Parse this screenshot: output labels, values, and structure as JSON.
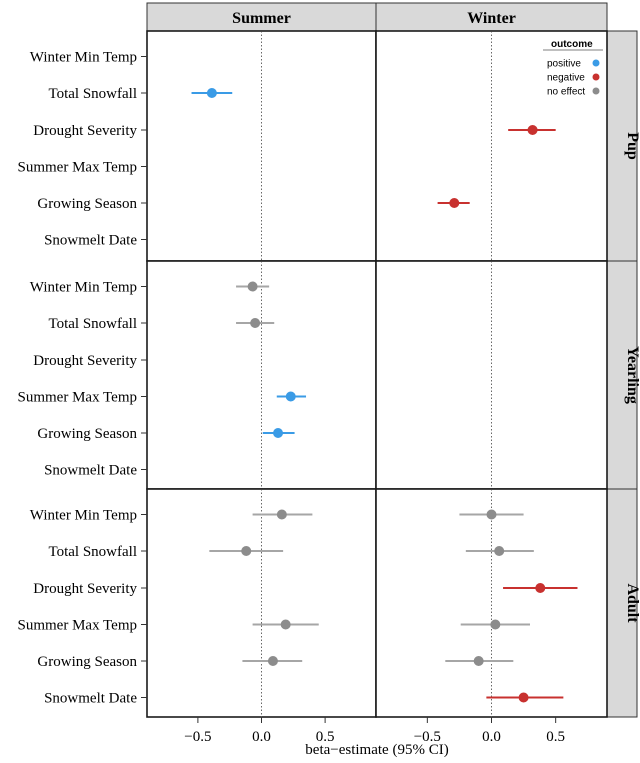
{
  "chart_data": {
    "type": "scatter",
    "xlabel": "beta−estimate (95% CI)",
    "ylabel": "",
    "xlim": [
      -0.9,
      0.9
    ],
    "xticks": [
      -0.5,
      0.0,
      0.5
    ],
    "xtick_labels": [
      "−0.5",
      "0.0",
      "0.5"
    ],
    "columns": [
      "Summer",
      "Winter"
    ],
    "rows": [
      "Pup",
      "Yearling",
      "Adult"
    ],
    "categories": [
      "Winter Min Temp",
      "Total Snowfall",
      "Drought Severity",
      "Summer Max Temp",
      "Growing Season",
      "Snowmelt Date"
    ],
    "grid": false,
    "legend": {
      "title": "outcome",
      "position": "top-right",
      "entries": [
        {
          "label": "positive",
          "color": "#3a9be6"
        },
        {
          "label": "negative",
          "color": "#c8312f"
        },
        {
          "label": "no effect",
          "color": "#8c8c8c"
        }
      ]
    },
    "points": [
      {
        "row": "Pup",
        "column": "Summer",
        "category": "Total Snowfall",
        "estimate": -0.39,
        "lower": -0.55,
        "upper": -0.23,
        "outcome": "positive"
      },
      {
        "row": "Pup",
        "column": "Winter",
        "category": "Drought Severity",
        "estimate": 0.32,
        "lower": 0.13,
        "upper": 0.5,
        "outcome": "negative"
      },
      {
        "row": "Pup",
        "column": "Winter",
        "category": "Growing Season",
        "estimate": -0.29,
        "lower": -0.42,
        "upper": -0.17,
        "outcome": "negative"
      },
      {
        "row": "Yearling",
        "column": "Summer",
        "category": "Winter Min Temp",
        "estimate": -0.07,
        "lower": -0.2,
        "upper": 0.06,
        "outcome": "no effect"
      },
      {
        "row": "Yearling",
        "column": "Summer",
        "category": "Total Snowfall",
        "estimate": -0.05,
        "lower": -0.2,
        "upper": 0.1,
        "outcome": "no effect"
      },
      {
        "row": "Yearling",
        "column": "Summer",
        "category": "Summer Max Temp",
        "estimate": 0.23,
        "lower": 0.12,
        "upper": 0.35,
        "outcome": "positive"
      },
      {
        "row": "Yearling",
        "column": "Summer",
        "category": "Growing Season",
        "estimate": 0.13,
        "lower": 0.01,
        "upper": 0.26,
        "outcome": "positive"
      },
      {
        "row": "Adult",
        "column": "Summer",
        "category": "Winter Min Temp",
        "estimate": 0.16,
        "lower": -0.07,
        "upper": 0.4,
        "outcome": "no effect"
      },
      {
        "row": "Adult",
        "column": "Summer",
        "category": "Total Snowfall",
        "estimate": -0.12,
        "lower": -0.41,
        "upper": 0.17,
        "outcome": "no effect"
      },
      {
        "row": "Adult",
        "column": "Summer",
        "category": "Summer Max Temp",
        "estimate": 0.19,
        "lower": -0.07,
        "upper": 0.45,
        "outcome": "no effect"
      },
      {
        "row": "Adult",
        "column": "Summer",
        "category": "Growing Season",
        "estimate": 0.09,
        "lower": -0.15,
        "upper": 0.32,
        "outcome": "no effect"
      },
      {
        "row": "Adult",
        "column": "Winter",
        "category": "Winter Min Temp",
        "estimate": 0.0,
        "lower": -0.25,
        "upper": 0.25,
        "outcome": "no effect"
      },
      {
        "row": "Adult",
        "column": "Winter",
        "category": "Total Snowfall",
        "estimate": 0.06,
        "lower": -0.2,
        "upper": 0.33,
        "outcome": "no effect"
      },
      {
        "row": "Adult",
        "column": "Winter",
        "category": "Drought Severity",
        "estimate": 0.38,
        "lower": 0.09,
        "upper": 0.67,
        "outcome": "negative"
      },
      {
        "row": "Adult",
        "column": "Winter",
        "category": "Summer Max Temp",
        "estimate": 0.03,
        "lower": -0.24,
        "upper": 0.3,
        "outcome": "no effect"
      },
      {
        "row": "Adult",
        "column": "Winter",
        "category": "Growing Season",
        "estimate": -0.1,
        "lower": -0.36,
        "upper": 0.17,
        "outcome": "no effect"
      },
      {
        "row": "Adult",
        "column": "Winter",
        "category": "Snowmelt Date",
        "estimate": 0.25,
        "lower": -0.04,
        "upper": 0.56,
        "outcome": "negative"
      }
    ]
  }
}
